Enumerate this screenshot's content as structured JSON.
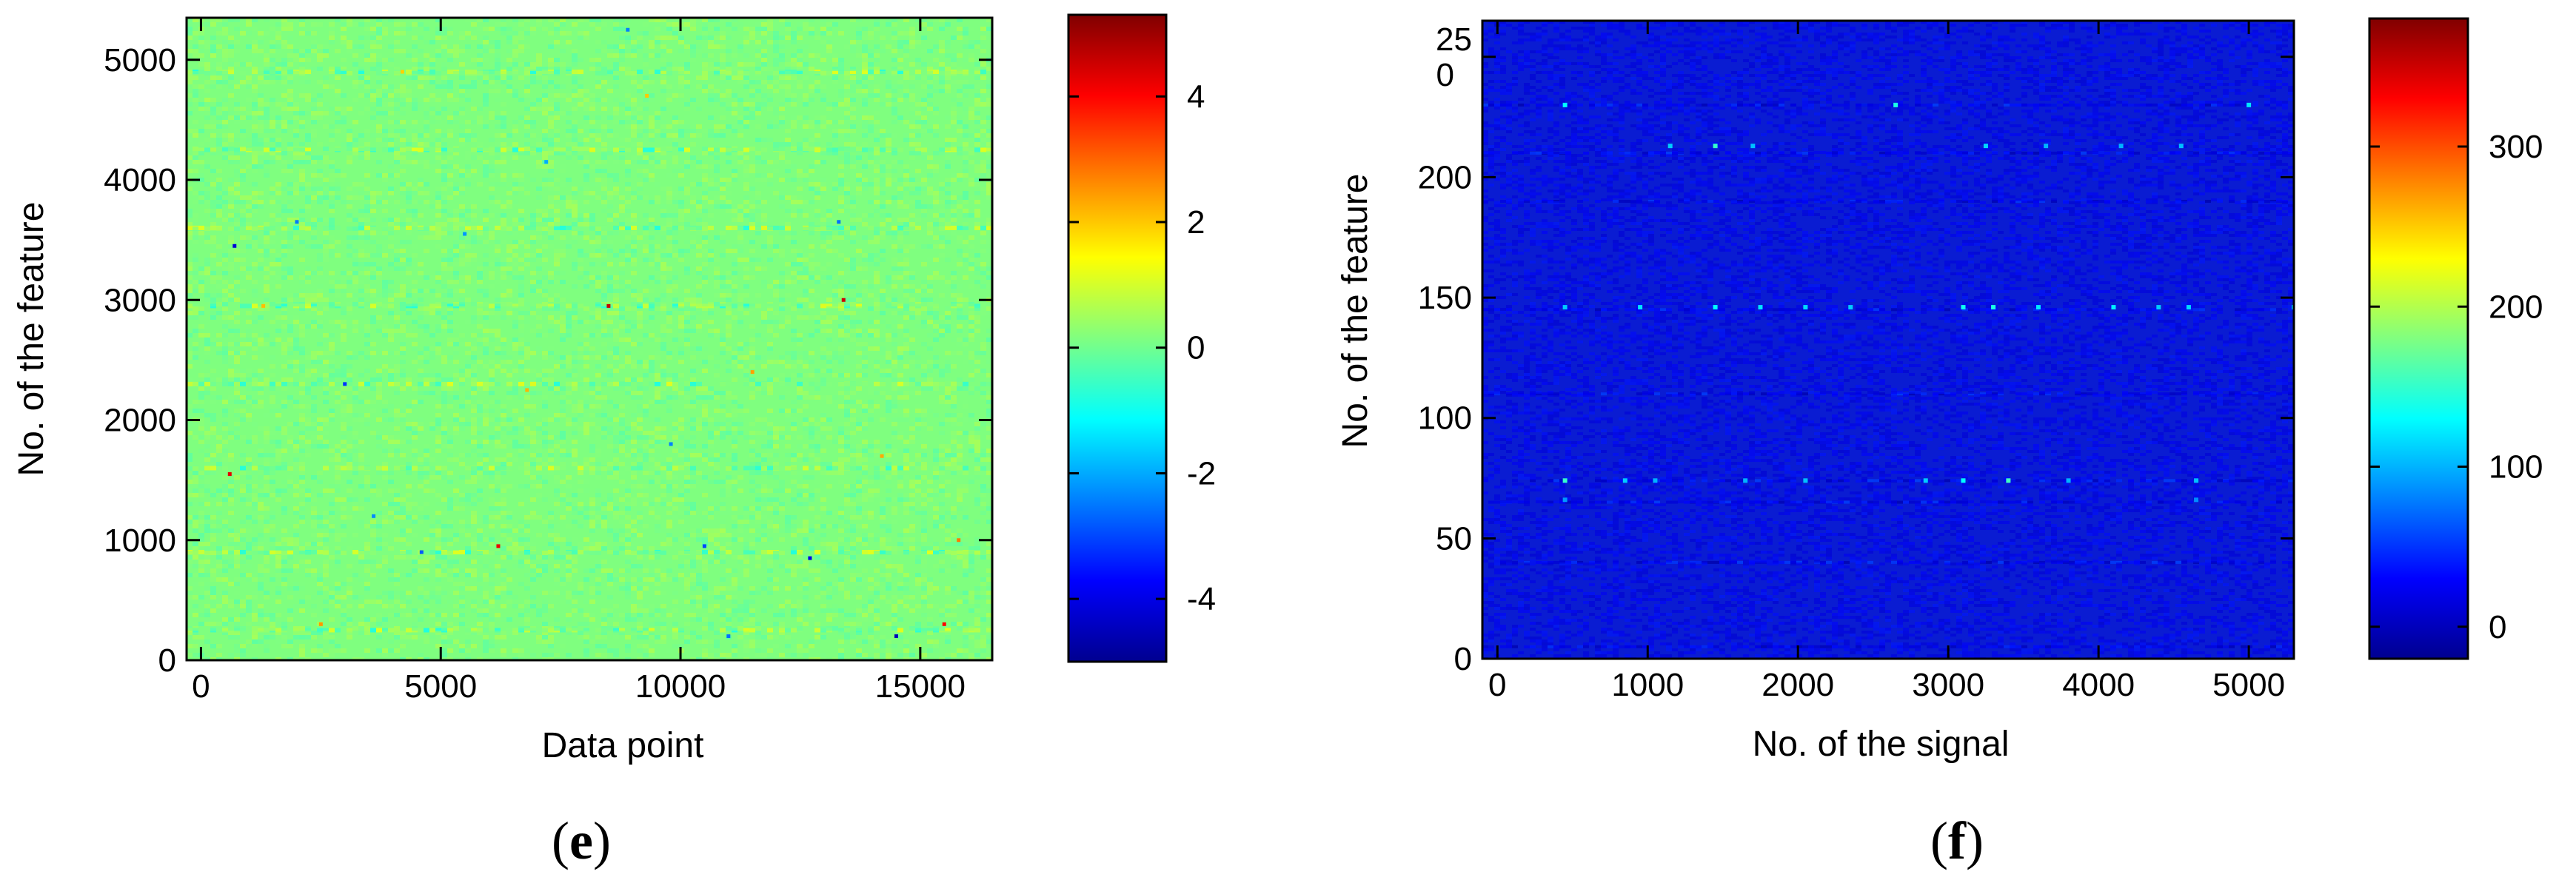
{
  "colors": {
    "jet": [
      "#00008f",
      "#0000ff",
      "#0080ff",
      "#00ffff",
      "#80ff80",
      "#ffff00",
      "#ff8000",
      "#ff0000",
      "#800000"
    ],
    "panel_e_background": "#7fff7f",
    "panel_f_background": "#0a1cd2"
  },
  "chart_data": [
    {
      "type": "heatmap",
      "panel_label": {
        "open": "(",
        "letter": "e",
        "close": ")"
      },
      "xlabel": "Data point",
      "ylabel": "No. of the feature",
      "xlim": [
        -300,
        16500
      ],
      "ylim": [
        0,
        5350
      ],
      "xticks": [
        0,
        5000,
        10000,
        15000
      ],
      "xtick_labels": [
        "0",
        "5000",
        "10000",
        "15000"
      ],
      "yticks": [
        0,
        1000,
        2000,
        3000,
        4000,
        5000
      ],
      "ytick_labels": [
        "0",
        "1000",
        "2000",
        "3000",
        "4000",
        "5000"
      ],
      "colorbar": {
        "range": [
          -5,
          5.3
        ],
        "ticks": [
          -4,
          -2,
          0,
          2,
          4
        ],
        "tick_labels": [
          "-4",
          "-2",
          "0",
          "2",
          "4"
        ]
      },
      "background_value": 0.2,
      "noise_amplitude": 0.6,
      "banded_rows": [
        250,
        900,
        1600,
        2300,
        2950,
        3600,
        4250,
        4900
      ],
      "hotspots": [
        {
          "x": 13400,
          "y": 3000,
          "value": 4.5
        },
        {
          "x": 15500,
          "y": 300,
          "value": 4.0
        },
        {
          "x": 6200,
          "y": 950,
          "value": 4.2
        },
        {
          "x": 8500,
          "y": 2950,
          "value": 4.6
        },
        {
          "x": 600,
          "y": 1550,
          "value": 4.3
        },
        {
          "x": 14500,
          "y": 200,
          "value": -4.5
        },
        {
          "x": 700,
          "y": 3450,
          "value": -4.2
        },
        {
          "x": 12700,
          "y": 850,
          "value": -4.0
        },
        {
          "x": 3000,
          "y": 2300,
          "value": -3.2
        },
        {
          "x": 10500,
          "y": 950,
          "value": -3.0
        },
        {
          "x": 4600,
          "y": 900,
          "value": -2.8
        },
        {
          "x": 13300,
          "y": 3650,
          "value": -2.6
        },
        {
          "x": 9800,
          "y": 1800,
          "value": -2.4
        },
        {
          "x": 2000,
          "y": 3650,
          "value": -2.5
        },
        {
          "x": 5500,
          "y": 3550,
          "value": -2.2
        },
        {
          "x": 7200,
          "y": 4150,
          "value": -2.0
        },
        {
          "x": 11000,
          "y": 200,
          "value": -2.6
        },
        {
          "x": 3600,
          "y": 1200,
          "value": -2.3
        },
        {
          "x": 8900,
          "y": 5250,
          "value": -2.4
        },
        {
          "x": 15800,
          "y": 1000,
          "value": 2.8
        },
        {
          "x": 2500,
          "y": 300,
          "value": 2.5
        },
        {
          "x": 11500,
          "y": 2400,
          "value": 2.4
        },
        {
          "x": 6800,
          "y": 2250,
          "value": 2.2
        },
        {
          "x": 9300,
          "y": 4700,
          "value": 2.0
        },
        {
          "x": 14200,
          "y": 1700,
          "value": 2.3
        },
        {
          "x": 1300,
          "y": 2950,
          "value": 2.1
        },
        {
          "x": 4200,
          "y": 4900,
          "value": 1.9
        }
      ]
    },
    {
      "type": "heatmap",
      "panel_label": {
        "open": "(",
        "letter": "f",
        "close": ")"
      },
      "xlabel": "No. of the signal",
      "ylabel": "No. of the feature",
      "xlim": [
        -100,
        5300
      ],
      "ylim": [
        0,
        265
      ],
      "xticks": [
        0,
        1000,
        2000,
        3000,
        4000,
        5000
      ],
      "xtick_labels": [
        "0",
        "1000",
        "2000",
        "3000",
        "4000",
        "5000"
      ],
      "yticks": [
        0,
        50,
        100,
        150,
        200,
        250
      ],
      "ytick_labels": [
        "0",
        "50",
        "100",
        "150",
        "200",
        "25\n0"
      ],
      "colorbar": {
        "range": [
          -20,
          380
        ],
        "ticks": [
          0,
          100,
          200,
          300
        ],
        "tick_labels": [
          "0",
          "100",
          "200",
          "300"
        ]
      },
      "background_value": 25,
      "noise_amplitude": 15,
      "banded_rows": [
        5,
        40,
        65,
        74,
        110,
        145,
        190,
        210,
        230
      ],
      "hotspots": [
        {
          "x": 450,
          "y": 230,
          "value": 130
        },
        {
          "x": 2650,
          "y": 230,
          "value": 140
        },
        {
          "x": 5000,
          "y": 230,
          "value": 120
        },
        {
          "x": 1450,
          "y": 213,
          "value": 150
        },
        {
          "x": 1150,
          "y": 213,
          "value": 110
        },
        {
          "x": 1700,
          "y": 213,
          "value": 105
        },
        {
          "x": 3250,
          "y": 213,
          "value": 115
        },
        {
          "x": 3650,
          "y": 213,
          "value": 100
        },
        {
          "x": 4150,
          "y": 213,
          "value": 100
        },
        {
          "x": 4550,
          "y": 213,
          "value": 105
        },
        {
          "x": 450,
          "y": 146,
          "value": 110
        },
        {
          "x": 950,
          "y": 146,
          "value": 120
        },
        {
          "x": 1450,
          "y": 146,
          "value": 130
        },
        {
          "x": 1750,
          "y": 146,
          "value": 120
        },
        {
          "x": 2050,
          "y": 146,
          "value": 115
        },
        {
          "x": 2350,
          "y": 146,
          "value": 110
        },
        {
          "x": 3100,
          "y": 146,
          "value": 135
        },
        {
          "x": 3300,
          "y": 146,
          "value": 140
        },
        {
          "x": 3600,
          "y": 146,
          "value": 120
        },
        {
          "x": 4100,
          "y": 146,
          "value": 125
        },
        {
          "x": 4400,
          "y": 146,
          "value": 110
        },
        {
          "x": 4600,
          "y": 146,
          "value": 115
        },
        {
          "x": 5300,
          "y": 146,
          "value": 110
        },
        {
          "x": 450,
          "y": 74,
          "value": 150
        },
        {
          "x": 850,
          "y": 74,
          "value": 110
        },
        {
          "x": 1050,
          "y": 74,
          "value": 100
        },
        {
          "x": 1650,
          "y": 74,
          "value": 100
        },
        {
          "x": 2050,
          "y": 74,
          "value": 105
        },
        {
          "x": 2850,
          "y": 74,
          "value": 110
        },
        {
          "x": 3100,
          "y": 74,
          "value": 130
        },
        {
          "x": 3400,
          "y": 74,
          "value": 155
        },
        {
          "x": 3800,
          "y": 74,
          "value": 100
        },
        {
          "x": 4650,
          "y": 74,
          "value": 105
        },
        {
          "x": 450,
          "y": 66,
          "value": 90
        },
        {
          "x": 4650,
          "y": 66,
          "value": 85
        }
      ]
    }
  ]
}
